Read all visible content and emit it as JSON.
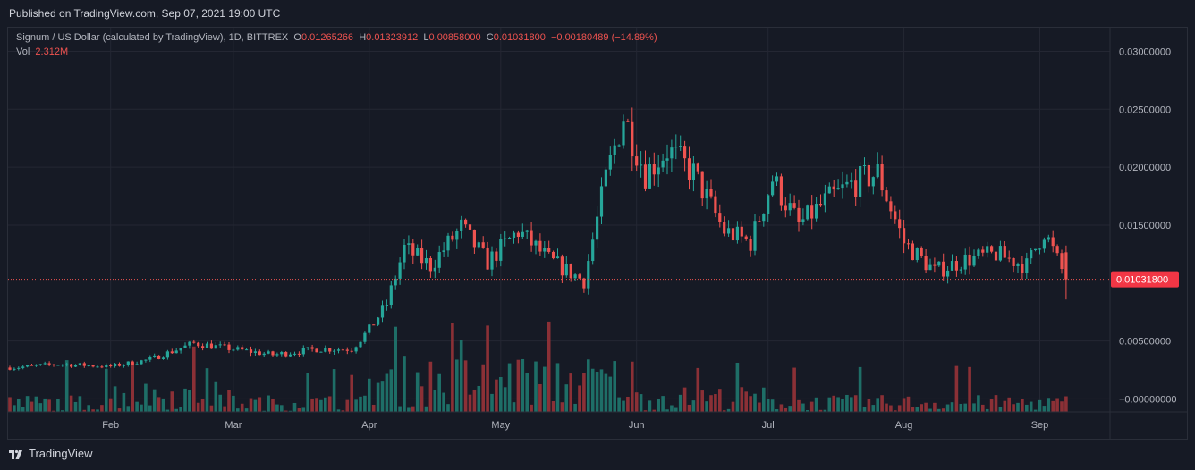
{
  "published": "Published on TradingView.com, Sep 07, 2021 19:00 UTC",
  "legend": {
    "title": "Signum / US Dollar (calculated by TradingView), 1D, BITTREX",
    "o_label": "O",
    "o_value": "0.01265266",
    "h_label": "H",
    "h_value": "0.01323912",
    "l_label": "L",
    "l_value": "0.00858000",
    "c_label": "C",
    "c_value": "0.01031800",
    "change": "−0.00180489 (−14.89%)",
    "vol_label": "Vol",
    "vol_value": "2.312M"
  },
  "price_badge": "0.01031800",
  "brand": "TradingView",
  "colors": {
    "up": "#26a69a",
    "down": "#ef5350",
    "up_vol": "#1e6e67",
    "down_vol": "#8b3036",
    "grid": "#242733",
    "bg": "#161a25",
    "badge": "#f23645"
  },
  "chart_data": {
    "type": "candlestick",
    "symbol": "Signum / US Dollar",
    "interval": "1D",
    "exchange": "BITTREX",
    "x_tick_labels": [
      "Feb",
      "Mar",
      "Apr",
      "May",
      "Jun",
      "Jul",
      "Aug",
      "Sep"
    ],
    "y_tick_labels": [
      "0.03000000",
      "0.02500000",
      "0.02000000",
      "0.01500000",
      "0.00500000",
      "−0.00000000"
    ],
    "ylim": [
      -0.0002,
      0.0305
    ],
    "last_price": 0.010318,
    "grid": true,
    "keypoints": [
      {
        "date": "2021-01-10",
        "close": 0.0027
      },
      {
        "date": "2021-01-20",
        "close": 0.003
      },
      {
        "date": "2021-02-01",
        "close": 0.0028
      },
      {
        "date": "2021-02-10",
        "close": 0.0034
      },
      {
        "date": "2021-02-20",
        "close": 0.0048
      },
      {
        "date": "2021-03-01",
        "close": 0.0043
      },
      {
        "date": "2021-03-10",
        "close": 0.0038
      },
      {
        "date": "2021-03-20",
        "close": 0.0043
      },
      {
        "date": "2021-03-28",
        "close": 0.0043
      },
      {
        "date": "2021-04-01",
        "close": 0.006
      },
      {
        "date": "2021-04-05",
        "close": 0.0082
      },
      {
        "date": "2021-04-09",
        "close": 0.013
      },
      {
        "date": "2021-04-15",
        "close": 0.0115
      },
      {
        "date": "2021-04-22",
        "close": 0.0148
      },
      {
        "date": "2021-04-28",
        "close": 0.0118
      },
      {
        "date": "2021-05-05",
        "close": 0.0145
      },
      {
        "date": "2021-05-12",
        "close": 0.012
      },
      {
        "date": "2021-05-20",
        "close": 0.0102
      },
      {
        "date": "2021-05-25",
        "close": 0.019
      },
      {
        "date": "2021-05-29",
        "close": 0.0245
      },
      {
        "date": "2021-06-03",
        "close": 0.0195
      },
      {
        "date": "2021-06-08",
        "close": 0.0215
      },
      {
        "date": "2021-06-14",
        "close": 0.0195
      },
      {
        "date": "2021-06-21",
        "close": 0.0145
      },
      {
        "date": "2021-06-27",
        "close": 0.0135
      },
      {
        "date": "2021-07-02",
        "close": 0.019
      },
      {
        "date": "2021-07-08",
        "close": 0.015
      },
      {
        "date": "2021-07-14",
        "close": 0.017
      },
      {
        "date": "2021-07-20",
        "close": 0.0185
      },
      {
        "date": "2021-07-26",
        "close": 0.0195
      },
      {
        "date": "2021-08-01",
        "close": 0.0135
      },
      {
        "date": "2021-08-08",
        "close": 0.011
      },
      {
        "date": "2021-08-15",
        "close": 0.012
      },
      {
        "date": "2021-08-22",
        "close": 0.0125
      },
      {
        "date": "2021-08-29",
        "close": 0.0115
      },
      {
        "date": "2021-09-02",
        "close": 0.0145
      },
      {
        "date": "2021-09-07",
        "close": 0.0103
      }
    ]
  }
}
